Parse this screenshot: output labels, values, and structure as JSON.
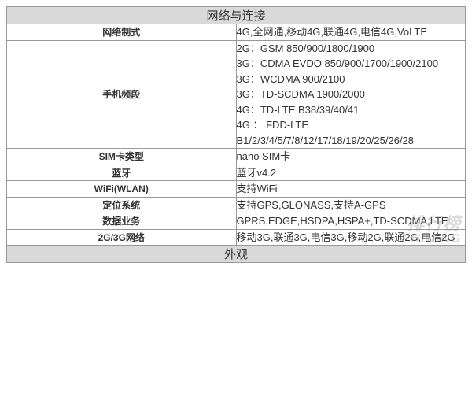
{
  "sections": [
    {
      "title": "网络与连接"
    },
    {
      "title": "外观"
    }
  ],
  "rows": [
    {
      "label": "网络制式",
      "values": [
        "4G,全网通,移动4G,联通4G,电信4G,VoLTE"
      ]
    },
    {
      "label": "手机频段",
      "values": [
        "2G：GSM 850/900/1800/1900",
        "3G：CDMA EVDO 850/900/1700/1900/2100",
        "3G：WCDMA 900/2100",
        "3G：TD-SCDMA 1900/2000",
        "4G：TD-LTE B38/39/40/41",
        {
          "justify": true,
          "parts": [
            "4G",
            "：",
            "FDD-LTE"
          ]
        },
        "B1/2/3/4/5/7/8/12/17/18/19/20/25/26/28"
      ]
    },
    {
      "label": "SIM卡类型",
      "values": [
        "nano SIM卡"
      ]
    },
    {
      "label": "蓝牙",
      "values": [
        "蓝牙v4.2"
      ]
    },
    {
      "label": "WiFi(WLAN)",
      "values": [
        "支持WiFi"
      ]
    },
    {
      "label": "定位系统",
      "values": [
        "支持GPS,GLONASS,支持A-GPS"
      ]
    },
    {
      "label": "数据业务",
      "values": [
        "GPRS,EDGE,HSDPA,HSPA+,TD-SCDMA,LTE"
      ]
    },
    {
      "label": "2G/3G网络",
      "values": [
        "移动3G,联通3G,电信3G,移动2G,联通2G,电信2G"
      ]
    }
  ],
  "watermark": {
    "line1": "排行榜",
    "line2": "PHBANG"
  },
  "colors": {
    "border": "#999999",
    "header_bg": "#d9d9d9",
    "text": "#333333",
    "watermark": "rgba(150,150,150,0.35)"
  }
}
